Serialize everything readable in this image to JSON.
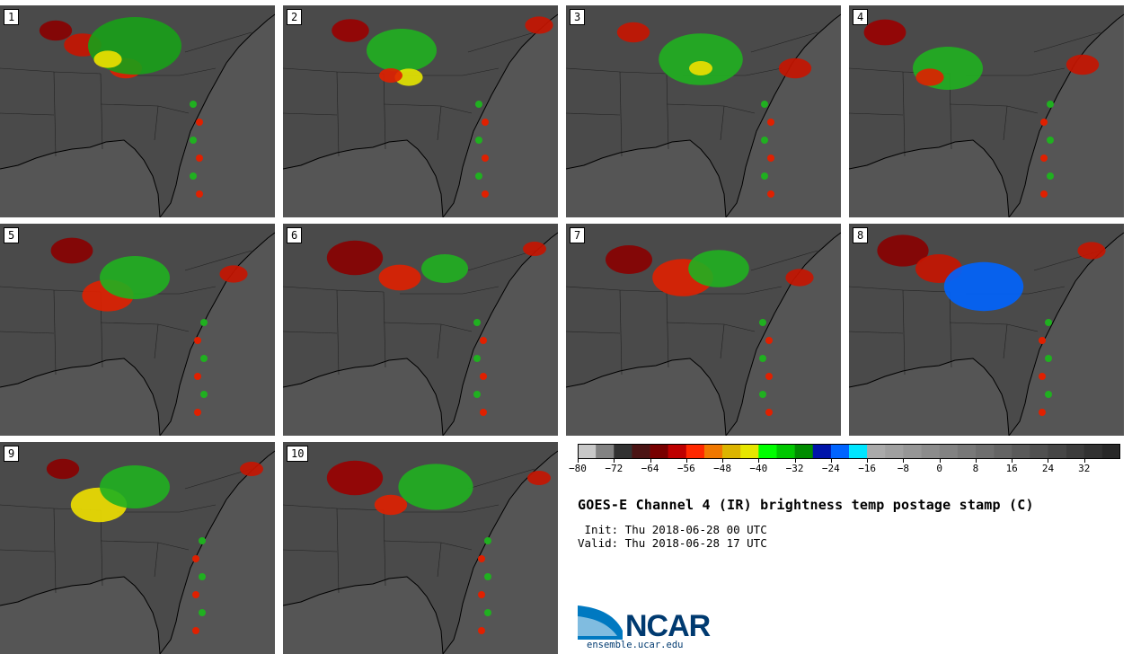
{
  "panels": [
    {
      "label": "1"
    },
    {
      "label": "2"
    },
    {
      "label": "3"
    },
    {
      "label": "4"
    },
    {
      "label": "5"
    },
    {
      "label": "6"
    },
    {
      "label": "7"
    },
    {
      "label": "8"
    },
    {
      "label": "9"
    },
    {
      "label": "10"
    }
  ],
  "colorbar": {
    "colors": [
      "#c8c8c8",
      "#828282",
      "#323232",
      "#4b1414",
      "#780000",
      "#be0000",
      "#ff2800",
      "#f07800",
      "#dcb400",
      "#e6e600",
      "#00ff00",
      "#00c800",
      "#008c00",
      "#0014aa",
      "#0064ff",
      "#00e6ff",
      "#aaaaaa",
      "#a0a0a0",
      "#969696",
      "#8c8c8c",
      "#828282",
      "#787878",
      "#6e6e6e",
      "#646464",
      "#5a5a5a",
      "#505050",
      "#464646",
      "#3c3c3c",
      "#323232",
      "#282828"
    ],
    "ticks": [
      "−80",
      "−72",
      "−64",
      "−56",
      "−48",
      "−40",
      "−32",
      "−24",
      "−16",
      "−8",
      "0",
      "8",
      "16",
      "24",
      "32"
    ],
    "min": -80,
    "max": 40
  },
  "title": "GOES-E Channel 4 (IR) brightness temp postage stamp (C)",
  "init": " Init: Thu 2018-06-28 00 UTC",
  "valid": "Valid: Thu 2018-06-28 17 UTC",
  "logo": {
    "name": "NCAR",
    "url": "ensemble.ucar.edu",
    "brand_color": "#003a70",
    "swoosh_color": "#0079c1"
  }
}
